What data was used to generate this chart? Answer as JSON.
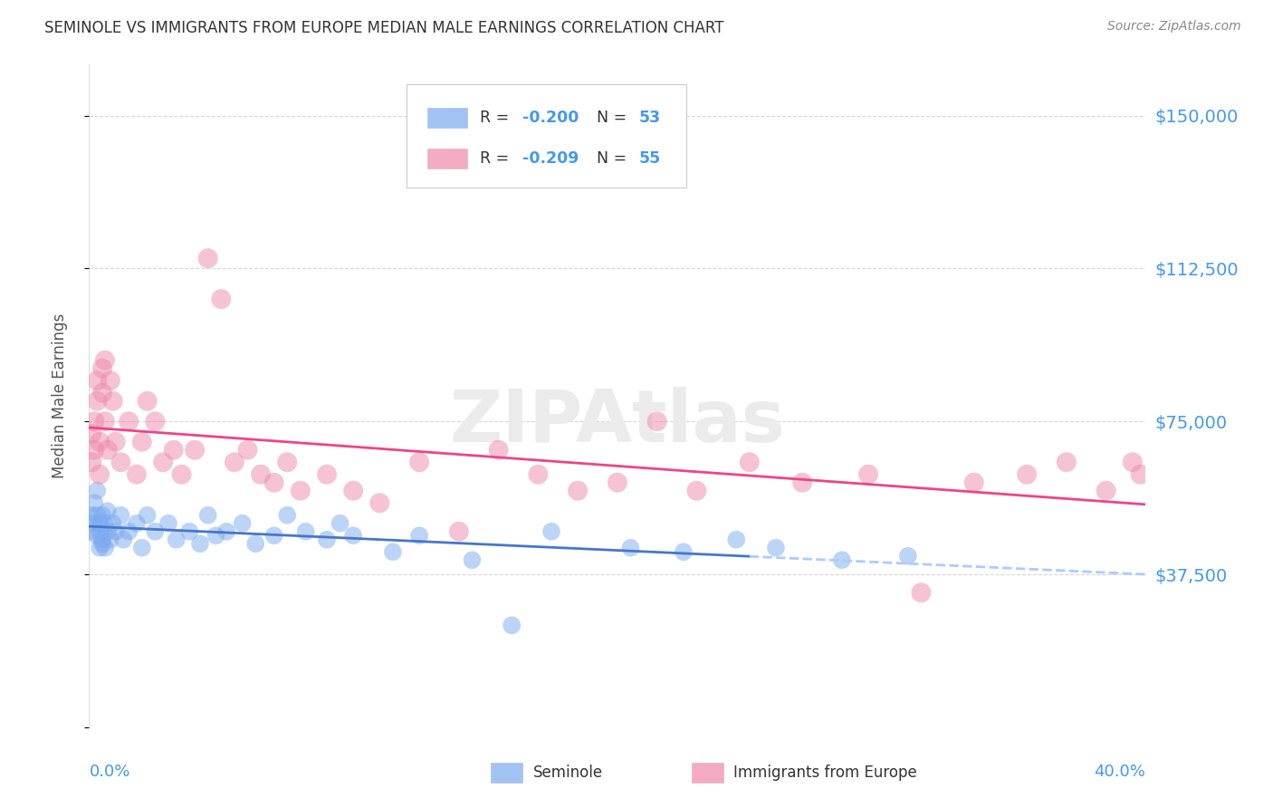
{
  "title": "SEMINOLE VS IMMIGRANTS FROM EUROPE MEDIAN MALE EARNINGS CORRELATION CHART",
  "source": "Source: ZipAtlas.com",
  "ylabel": "Median Male Earnings",
  "yticks": [
    0,
    37500,
    75000,
    112500,
    150000
  ],
  "ytick_labels": [
    "",
    "$37,500",
    "$75,000",
    "$112,500",
    "$150,000"
  ],
  "xlim": [
    0.0,
    0.4
  ],
  "ylim": [
    0,
    162500
  ],
  "seminole_R": -0.2,
  "seminole_N": 53,
  "europe_R": -0.209,
  "europe_N": 55,
  "seminole_color": "#7aaaee",
  "europe_color": "#ee88aa",
  "seminole_line_color": "#4477cc",
  "europe_line_color": "#ee4488",
  "dashed_line_color": "#aaccff",
  "background_color": "#ffffff",
  "grid_color": "#cccccc",
  "axis_label_color": "#4499ee",
  "title_color": "#333333",
  "seminole_x": [
    0.001,
    0.001,
    0.002,
    0.002,
    0.003,
    0.003,
    0.003,
    0.004,
    0.004,
    0.004,
    0.005,
    0.005,
    0.005,
    0.006,
    0.006,
    0.007,
    0.007,
    0.008,
    0.009,
    0.01,
    0.012,
    0.013,
    0.015,
    0.018,
    0.02,
    0.022,
    0.025,
    0.03,
    0.033,
    0.038,
    0.042,
    0.045,
    0.048,
    0.052,
    0.058,
    0.063,
    0.07,
    0.075,
    0.082,
    0.09,
    0.095,
    0.1,
    0.115,
    0.125,
    0.145,
    0.16,
    0.175,
    0.205,
    0.225,
    0.245,
    0.26,
    0.285,
    0.31
  ],
  "seminole_y": [
    52000,
    48000,
    50000,
    55000,
    47000,
    52000,
    58000,
    44000,
    50000,
    48000,
    45000,
    52000,
    46000,
    50000,
    44000,
    48000,
    53000,
    46000,
    50000,
    48000,
    52000,
    46000,
    48000,
    50000,
    44000,
    52000,
    48000,
    50000,
    46000,
    48000,
    45000,
    52000,
    47000,
    48000,
    50000,
    45000,
    47000,
    52000,
    48000,
    46000,
    50000,
    47000,
    43000,
    47000,
    41000,
    25000,
    48000,
    44000,
    43000,
    46000,
    44000,
    41000,
    42000
  ],
  "europe_x": [
    0.001,
    0.001,
    0.002,
    0.002,
    0.003,
    0.003,
    0.004,
    0.004,
    0.005,
    0.005,
    0.006,
    0.006,
    0.007,
    0.008,
    0.009,
    0.01,
    0.012,
    0.015,
    0.018,
    0.02,
    0.022,
    0.025,
    0.028,
    0.032,
    0.035,
    0.04,
    0.045,
    0.05,
    0.055,
    0.06,
    0.065,
    0.07,
    0.075,
    0.08,
    0.09,
    0.1,
    0.11,
    0.125,
    0.14,
    0.155,
    0.17,
    0.185,
    0.2,
    0.215,
    0.23,
    0.25,
    0.27,
    0.295,
    0.315,
    0.335,
    0.355,
    0.37,
    0.385,
    0.395,
    0.398
  ],
  "europe_y": [
    72000,
    65000,
    68000,
    75000,
    80000,
    85000,
    70000,
    62000,
    88000,
    82000,
    90000,
    75000,
    68000,
    85000,
    80000,
    70000,
    65000,
    75000,
    62000,
    70000,
    80000,
    75000,
    65000,
    68000,
    62000,
    68000,
    115000,
    105000,
    65000,
    68000,
    62000,
    60000,
    65000,
    58000,
    62000,
    58000,
    55000,
    65000,
    48000,
    68000,
    62000,
    58000,
    60000,
    75000,
    58000,
    65000,
    60000,
    62000,
    33000,
    60000,
    62000,
    65000,
    58000,
    65000,
    62000
  ]
}
